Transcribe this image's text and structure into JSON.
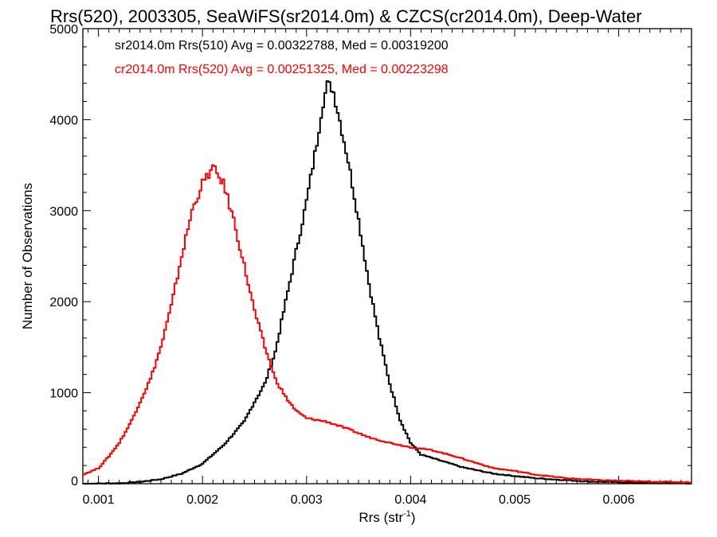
{
  "chart_data": {
    "type": "line",
    "title": "Rrs(520), 2003305, SeaWiFS(sr2014.0m) & CZCS(cr2014.0m), Deep-Water",
    "xlabel": "Rrs (str",
    "xlabel_sup": "-1",
    "xlabel_close": ")",
    "ylabel": "Number of Observations",
    "xlim": [
      0.00085,
      0.0067
    ],
    "ylim": [
      0,
      5000
    ],
    "xticks": [
      0.001,
      0.002,
      0.003,
      0.004,
      0.005,
      0.006
    ],
    "xtick_labels": [
      "0.001",
      "0.002",
      "0.003",
      "0.004",
      "0.005",
      "0.006"
    ],
    "yticks": [
      0,
      1000,
      2000,
      3000,
      4000,
      5000
    ],
    "ytick_labels": [
      "0",
      "1000",
      "2000",
      "3000",
      "4000",
      "5000"
    ],
    "grid": false,
    "step": true,
    "bin_width": 2e-05,
    "legend_position": "top-left",
    "colors": {
      "sr2014": "#000000",
      "cr2014": "#ff0000"
    },
    "series": [
      {
        "name": "sr2014.0m Rrs(510) Avg = 0.00322788, Med = 0.00319200",
        "color": "#000000",
        "points": [
          [
            0.00085,
            0
          ],
          [
            0.0012,
            5
          ],
          [
            0.0014,
            20
          ],
          [
            0.0016,
            50
          ],
          [
            0.0018,
            110
          ],
          [
            0.002,
            220
          ],
          [
            0.0022,
            420
          ],
          [
            0.0024,
            680
          ],
          [
            0.0025,
            900
          ],
          [
            0.0026,
            1100
          ],
          [
            0.0027,
            1450
          ],
          [
            0.0028,
            2000
          ],
          [
            0.0029,
            2550
          ],
          [
            0.003,
            3100
          ],
          [
            0.0031,
            3750
          ],
          [
            0.00315,
            4150
          ],
          [
            0.0032,
            4380
          ],
          [
            0.00325,
            4350
          ],
          [
            0.0033,
            4100
          ],
          [
            0.0034,
            3550
          ],
          [
            0.0035,
            2900
          ],
          [
            0.0036,
            2200
          ],
          [
            0.0037,
            1600
          ],
          [
            0.0038,
            1100
          ],
          [
            0.0039,
            700
          ],
          [
            0.004,
            450
          ],
          [
            0.0041,
            320
          ],
          [
            0.0043,
            250
          ],
          [
            0.0045,
            180
          ],
          [
            0.0048,
            110
          ],
          [
            0.0052,
            60
          ],
          [
            0.0057,
            25
          ],
          [
            0.0062,
            10
          ],
          [
            0.0067,
            5
          ]
        ]
      },
      {
        "name": "cr2014.0m Rrs(520) Avg = 0.00251325, Med = 0.00223298",
        "color": "#ff0000",
        "points": [
          [
            0.00085,
            100
          ],
          [
            0.001,
            170
          ],
          [
            0.0011,
            300
          ],
          [
            0.0012,
            450
          ],
          [
            0.0013,
            650
          ],
          [
            0.0014,
            900
          ],
          [
            0.0015,
            1150
          ],
          [
            0.0016,
            1500
          ],
          [
            0.0017,
            1950
          ],
          [
            0.0018,
            2500
          ],
          [
            0.0019,
            3000
          ],
          [
            0.002,
            3300
          ],
          [
            0.0021,
            3470
          ],
          [
            0.0022,
            3300
          ],
          [
            0.0023,
            2900
          ],
          [
            0.0024,
            2400
          ],
          [
            0.0025,
            1900
          ],
          [
            0.0026,
            1500
          ],
          [
            0.0027,
            1150
          ],
          [
            0.0028,
            950
          ],
          [
            0.0029,
            800
          ],
          [
            0.003,
            720
          ],
          [
            0.0032,
            680
          ],
          [
            0.0034,
            600
          ],
          [
            0.0036,
            510
          ],
          [
            0.0038,
            450
          ],
          [
            0.004,
            400
          ],
          [
            0.0042,
            370
          ],
          [
            0.0044,
            310
          ],
          [
            0.0046,
            240
          ],
          [
            0.0048,
            170
          ],
          [
            0.005,
            140
          ],
          [
            0.0052,
            100
          ],
          [
            0.0055,
            60
          ],
          [
            0.0058,
            40
          ],
          [
            0.0062,
            25
          ],
          [
            0.0067,
            15
          ]
        ]
      }
    ]
  }
}
